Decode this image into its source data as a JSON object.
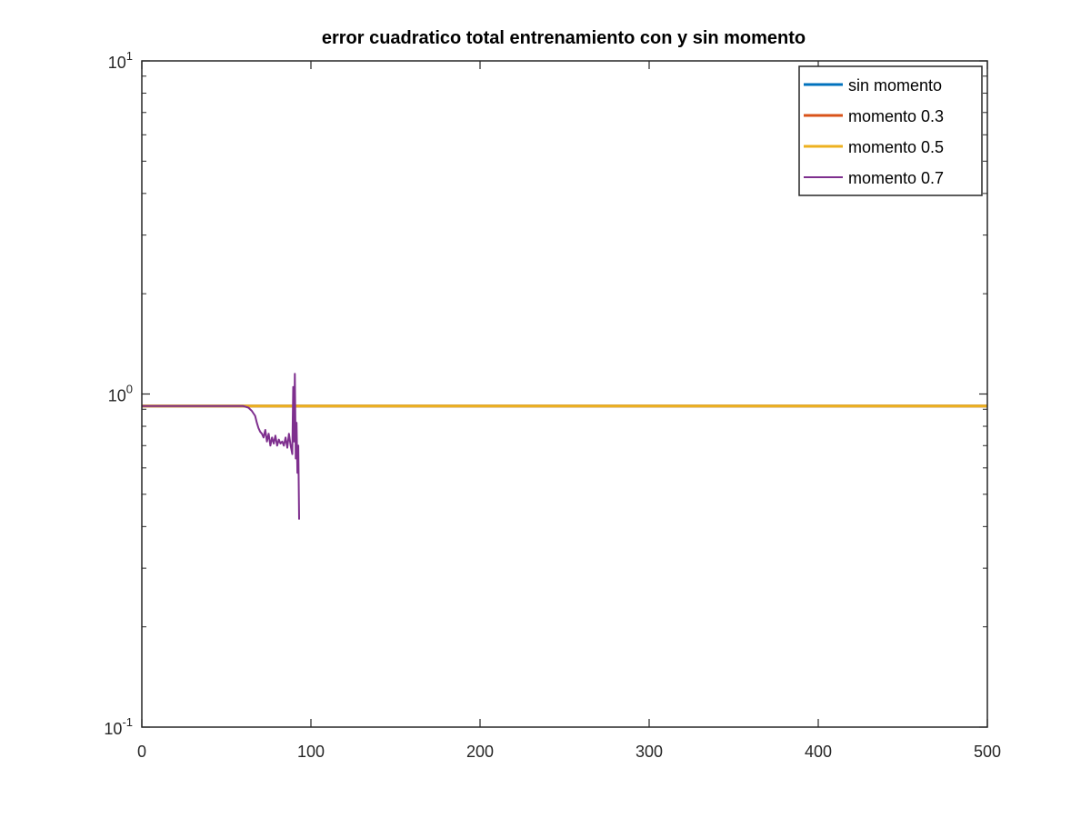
{
  "chart_data": {
    "type": "line",
    "title": "error cuadratico total entrenamiento con y sin momento",
    "xlabel": "",
    "ylabel": "",
    "xlim": [
      0,
      500
    ],
    "ylim": [
      0.1,
      10
    ],
    "yscale": "log",
    "grid": false,
    "legend_position": "top-right",
    "x_ticks": [
      {
        "value": 0,
        "label": "0"
      },
      {
        "value": 100,
        "label": "100"
      },
      {
        "value": 200,
        "label": "200"
      },
      {
        "value": 300,
        "label": "300"
      },
      {
        "value": 400,
        "label": "400"
      },
      {
        "value": 500,
        "label": "500"
      }
    ],
    "y_ticks": [
      {
        "value": 10,
        "base": "10",
        "exp": "1"
      },
      {
        "value": 1,
        "base": "10",
        "exp": "0"
      },
      {
        "value": 0.1,
        "base": "10",
        "exp": "-1"
      }
    ],
    "series": [
      {
        "name": "sin momento",
        "color": "#0072BD",
        "x": [
          0,
          500
        ],
        "y": [
          0.92,
          0.92
        ]
      },
      {
        "name": "momento 0.3",
        "color": "#D95319",
        "x": [
          0,
          500
        ],
        "y": [
          0.92,
          0.92
        ]
      },
      {
        "name": "momento 0.5",
        "color": "#EDB120",
        "x": [
          0,
          500
        ],
        "y": [
          0.92,
          0.92
        ]
      },
      {
        "name": "momento 0.7",
        "color": "#7E2F8E",
        "x": [
          0,
          60,
          63,
          65,
          67,
          68,
          69,
          70,
          71,
          72,
          73,
          74,
          75,
          76,
          77,
          78,
          79,
          80,
          81,
          82,
          83,
          84,
          85,
          86,
          87,
          88,
          89,
          89.5,
          90,
          90.5,
          91,
          91.5,
          92,
          92.5,
          93
        ],
        "y": [
          0.92,
          0.92,
          0.91,
          0.89,
          0.86,
          0.82,
          0.79,
          0.77,
          0.76,
          0.74,
          0.78,
          0.72,
          0.76,
          0.7,
          0.74,
          0.71,
          0.75,
          0.7,
          0.73,
          0.71,
          0.72,
          0.7,
          0.74,
          0.69,
          0.76,
          0.7,
          0.66,
          1.05,
          0.72,
          1.15,
          0.64,
          0.82,
          0.58,
          0.7,
          0.42
        ]
      }
    ]
  }
}
